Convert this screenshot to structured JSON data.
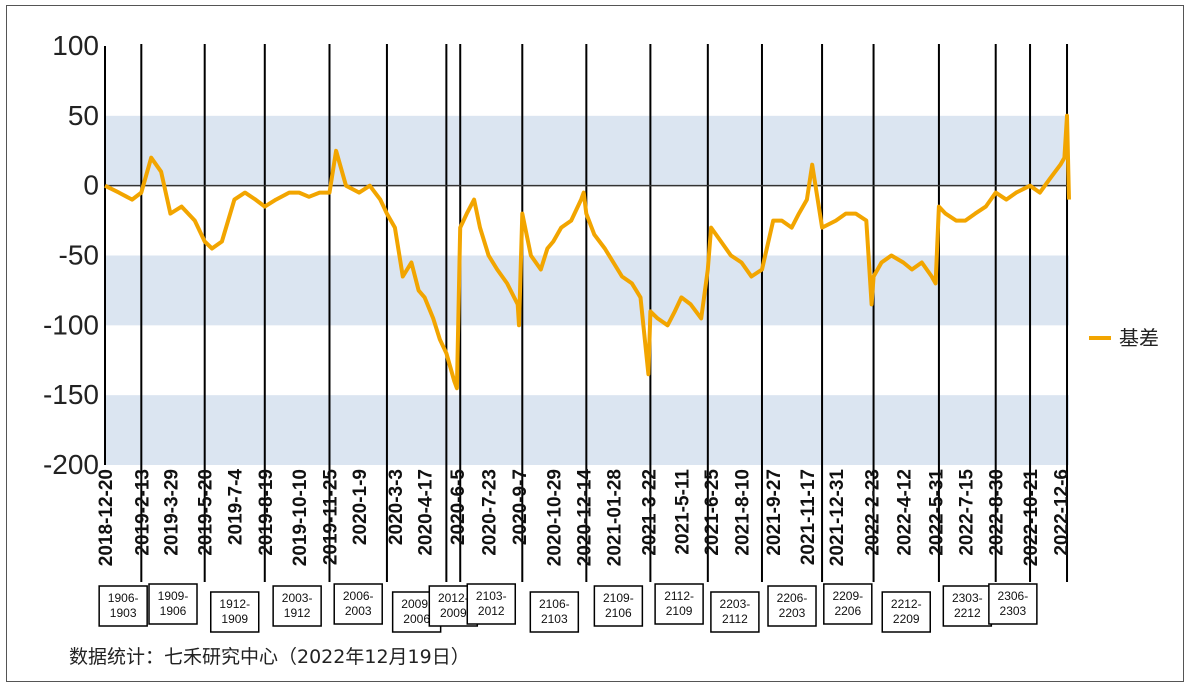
{
  "chart_data": {
    "type": "line",
    "title": "",
    "xlabel": "",
    "ylabel": "",
    "ylim": [
      -200,
      100
    ],
    "yticks": [
      100,
      50,
      0,
      -50,
      -100,
      -150,
      -200
    ],
    "shaded_bands": [
      [
        0,
        50
      ],
      [
        -50,
        -100
      ],
      [
        -150,
        -200
      ]
    ],
    "band_color": "#dbe5f1",
    "line_color": "#f2a500",
    "legend_position": "right",
    "series": [
      {
        "name": "基差",
        "x": [
          "2018-12-20",
          "2019-1-10",
          "2019-1-30",
          "2019-2-13",
          "2019-2-28",
          "2019-3-15",
          "2019-3-29",
          "2019-4-15",
          "2019-5-5",
          "2019-5-20",
          "2019-5-31",
          "2019-6-15",
          "2019-7-4",
          "2019-7-20",
          "2019-8-5",
          "2019-8-19",
          "2019-9-5",
          "2019-9-25",
          "2019-10-10",
          "2019-10-25",
          "2019-11-10",
          "2019-11-25",
          "2019-12-5",
          "2019-12-20",
          "2020-1-9",
          "2020-1-25",
          "2020-2-10",
          "2020-2-20",
          "2020-3-3",
          "2020-3-15",
          "2020-3-28",
          "2020-4-8",
          "2020-4-17",
          "2020-4-30",
          "2020-5-10",
          "2020-5-20",
          "2020-6-1",
          "2020-6-5",
          "2020-6-10",
          "2020-6-20",
          "2020-7-1",
          "2020-7-10",
          "2020-7-23",
          "2020-8-5",
          "2020-8-20",
          "2020-9-5",
          "2020-9-7",
          "2020-9-12",
          "2020-9-25",
          "2020-10-10",
          "2020-10-20",
          "2020-10-29",
          "2020-11-10",
          "2020-11-25",
          "2020-12-10",
          "2020-12-14",
          "2020-12-18",
          "2020-12-30",
          "2021-01-15",
          "2021-01-28",
          "2021-02-10",
          "2021-02-25",
          "2021-03-10",
          "2021-3-22",
          "2021-3-25",
          "2021-4-5",
          "2021-4-20",
          "2021-5-1",
          "2021-5-11",
          "2021-5-25",
          "2021-6-10",
          "2021-6-20",
          "2021-6-25",
          "2021-7-10",
          "2021-7-25",
          "2021-8-10",
          "2021-8-25",
          "2021-9-10",
          "2021-9-27",
          "2021-10-10",
          "2021-10-25",
          "2021-11-5",
          "2021-11-17",
          "2021-11-25",
          "2021-12-10",
          "2021-12-31",
          "2022-1-15",
          "2022-1-30",
          "2022-2-15",
          "2022-2-23",
          "2022-2-26",
          "2022-3-10",
          "2022-3-25",
          "2022-4-12",
          "2022-4-25",
          "2022-5-10",
          "2022-5-25",
          "2022-5-31",
          "2022-6-5",
          "2022-6-15",
          "2022-7-1",
          "2022-7-15",
          "2022-7-30",
          "2022-8-15",
          "2022-8-30",
          "2022-9-15",
          "2022-9-30",
          "2022-10-21",
          "2022-11-5",
          "2022-11-20",
          "2022-12-6",
          "2022-12-12",
          "2022-12-16",
          "2022-12-19"
        ],
        "values": [
          0,
          -5,
          -10,
          -5,
          20,
          10,
          -20,
          -15,
          -25,
          -40,
          -45,
          -40,
          -10,
          -5,
          -10,
          -15,
          -10,
          -5,
          -5,
          -8,
          -5,
          -5,
          25,
          0,
          -5,
          0,
          -10,
          -20,
          -30,
          -65,
          -55,
          -75,
          -80,
          -95,
          -110,
          -120,
          -140,
          -145,
          -30,
          -20,
          -10,
          -30,
          -50,
          -60,
          -70,
          -85,
          -100,
          -20,
          -50,
          -60,
          -45,
          -40,
          -30,
          -25,
          -10,
          -5,
          -20,
          -35,
          -45,
          -55,
          -65,
          -70,
          -80,
          -135,
          -90,
          -95,
          -100,
          -90,
          -80,
          -85,
          -95,
          -60,
          -30,
          -40,
          -50,
          -55,
          -65,
          -60,
          -25,
          -25,
          -30,
          -20,
          -10,
          15,
          -30,
          -25,
          -20,
          -20,
          -25,
          -85,
          -65,
          -55,
          -50,
          -55,
          -60,
          -55,
          -65,
          -70,
          -15,
          -20,
          -25,
          -25,
          -20,
          -15,
          -5,
          -10,
          -5,
          0,
          -5,
          5,
          15,
          20,
          50,
          -10
        ]
      }
    ],
    "x_tick_labels": [
      "2018-12-20",
      "2019-2-13",
      "2019-3-29",
      "2019-5-20",
      "2019-7-4",
      "2019-8-19",
      "2019-10-10",
      "2019-11-25",
      "2020-1-9",
      "2020-3-3",
      "2020-4-17",
      "2020-6-5",
      "2020-7-23",
      "2020-9-7",
      "2020-10-29",
      "2020-12-14",
      "2021-01-28",
      "2021-3-22",
      "2021-5-11",
      "2021-6-25",
      "2021-8-10",
      "2021-9-27",
      "2021-11-17",
      "2021-12-31",
      "2022-2-23",
      "2022-4-12",
      "2022-5-31",
      "2022-7-15",
      "2022-8-30",
      "2022-10-21",
      "2022-12-6"
    ],
    "contract_switches": [
      "2019-2-13",
      "2019-5-20",
      "2019-8-19",
      "2019-11-25",
      "2020-2-20",
      "2020-5-20",
      "2020-6-10",
      "2020-9-12",
      "2020-12-18",
      "2021-3-25",
      "2021-6-20",
      "2021-9-10",
      "2021-12-10",
      "2022-2-26",
      "2022-6-5",
      "2022-8-30",
      "2022-10-21",
      "2022-12-16"
    ],
    "contract_labels": [
      "1906-\n1903",
      "1909-\n1906",
      "1912-\n1909",
      "2003-\n1912",
      "2006-\n2003",
      "2009-\n2006",
      "2012-\n2009",
      "2103-\n2012",
      "2106-\n2103",
      "2109-\n2106",
      "2112-\n2109",
      "2203-\n2112",
      "2206-\n2203",
      "2209-\n2206",
      "2212-\n2209",
      "2303-\n2212",
      "2306-\n2303"
    ]
  },
  "source_note": "数据统计：七禾研究中心（2022年12月19日）"
}
